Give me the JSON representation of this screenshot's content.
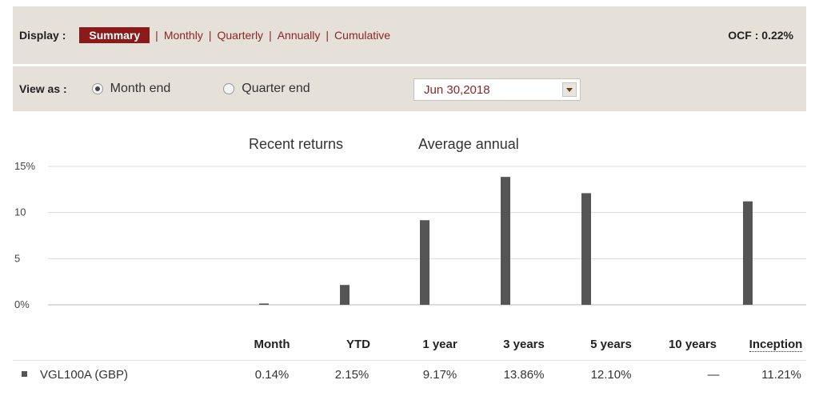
{
  "display": {
    "label": "Display :",
    "tabs": [
      {
        "label": "Summary",
        "active": true
      },
      {
        "label": "Monthly",
        "active": false
      },
      {
        "label": "Quarterly",
        "active": false
      },
      {
        "label": "Annually",
        "active": false
      },
      {
        "label": "Cumulative",
        "active": false
      }
    ],
    "separator": "|",
    "ocf": "OCF : 0.22%"
  },
  "view_as": {
    "label": "View as :",
    "options": [
      {
        "label": "Month end",
        "selected": true
      },
      {
        "label": "Quarter end",
        "selected": false
      }
    ],
    "date_select": "Jun 30,2018"
  },
  "sections": {
    "recent": "Recent returns",
    "average": "Average annual"
  },
  "chart_data": {
    "type": "bar",
    "categories": [
      "Month",
      "YTD",
      "1 year",
      "3 years",
      "5 years",
      "10 years",
      "Inception"
    ],
    "values": [
      0.14,
      2.15,
      9.17,
      13.86,
      12.1,
      null,
      11.21
    ],
    "ylim": [
      0,
      15
    ],
    "yticks": [
      {
        "value": 15,
        "label": "15%"
      },
      {
        "value": 10,
        "label": "10"
      },
      {
        "value": 5,
        "label": "5"
      },
      {
        "value": 0,
        "label": "0%"
      }
    ],
    "grid": true,
    "bar_color": "#555555"
  },
  "table": {
    "headers": [
      "Month",
      "YTD",
      "1 year",
      "3 years",
      "5 years",
      "10 years",
      "Inception"
    ],
    "row": {
      "name": "VGL100A (GBP)",
      "values": [
        "0.14%",
        "2.15%",
        "9.17%",
        "13.86%",
        "12.10%",
        "—",
        "11.21%"
      ]
    }
  },
  "colors": {
    "accent": "#8b1a1a",
    "bar_bg": "#e5e0d8"
  }
}
